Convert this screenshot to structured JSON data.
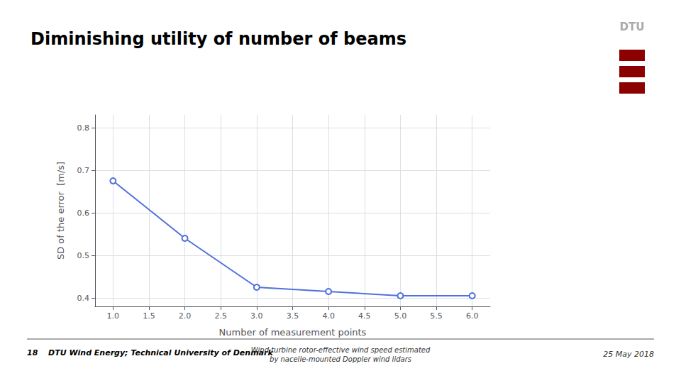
{
  "chart_data": {
    "type": "line",
    "title": "Diminishing utility of number of beams",
    "x_label": "Number of measurement points",
    "y_label": "SD of the error  [m/s]",
    "x": [
      1,
      2,
      3,
      4,
      5,
      6
    ],
    "values": [
      0.675,
      0.54,
      0.425,
      0.415,
      0.405,
      0.405
    ],
    "xlim": [
      0.75,
      6.25
    ],
    "xticks": [
      {
        "value": 1.0,
        "label": "1.0"
      },
      1.5,
      {
        "value": 2.0,
        "label": "2.0"
      },
      2.5,
      {
        "value": 3.0,
        "label": "3.0"
      },
      3.5,
      {
        "value": 4.0,
        "label": "4.0"
      },
      4.5,
      {
        "value": 5.0,
        "label": "5.0"
      },
      5.5,
      {
        "value": 6.0,
        "label": "6.0"
      }
    ],
    "ylim": [
      0.38,
      0.83
    ],
    "yticks": [
      0.4,
      0.5,
      0.6,
      0.7,
      0.8
    ],
    "marker": "circle",
    "grid": true,
    "annotations": [
      "18",
      "DTU Wind Energy; Technical University of Denmark",
      "Wind turbine rotor-effective wind speed estimated\nby nacelle-mounted Doppler wind lidars",
      "25 May 2018",
      "DTU"
    ]
  }
}
